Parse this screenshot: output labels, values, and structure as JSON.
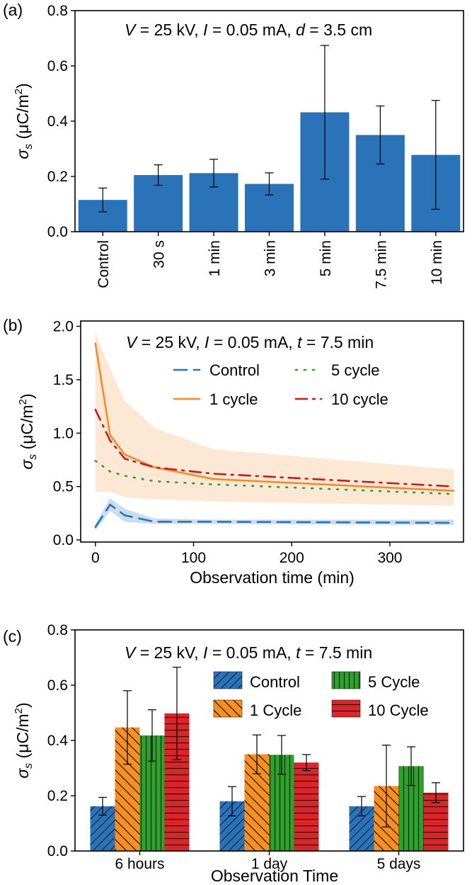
{
  "chart_data": [
    {
      "panel": "(a)",
      "type": "bar",
      "annotation": "V = 25 kV, I = 0.05 mA, d = 3.5 cm",
      "ylabel": "σs (μC/m2)",
      "xlabel": "",
      "ylim": [
        0,
        0.8
      ],
      "yticks": [
        "0.0",
        "0.2",
        "0.4",
        "0.6",
        "0.8"
      ],
      "categories": [
        "Control",
        "30 s",
        "1 min",
        "3 min",
        "5 min",
        "7.5 min",
        "10 min"
      ],
      "values": [
        0.115,
        0.205,
        0.212,
        0.173,
        0.432,
        0.35,
        0.278
      ],
      "errors": [
        0.043,
        0.037,
        0.05,
        0.04,
        0.242,
        0.105,
        0.197
      ],
      "color": "#2a73b8"
    },
    {
      "panel": "(b)",
      "type": "line",
      "annotation": "V = 25 kV, I = 0.05 mA, t = 7.5 min",
      "ylabel": "σs (μC/m2)",
      "xlabel": "Observation time (min)",
      "xlim": [
        -15,
        375
      ],
      "ylim": [
        -0.02,
        2.05
      ],
      "xticks": [
        0,
        100,
        200,
        300
      ],
      "yticks": [
        "0.0",
        "0.5",
        "1.0",
        "1.5",
        "2.0"
      ],
      "legend_placement": "top-right",
      "series": [
        {
          "name": "Control",
          "color": "#2a73b8",
          "dash": "18 10",
          "x": [
            0,
            15,
            30,
            60,
            120,
            365
          ],
          "y": [
            0.12,
            0.33,
            0.23,
            0.17,
            0.17,
            0.16
          ],
          "band_lo": [
            0.09,
            0.27,
            0.17,
            0.15,
            0.15,
            0.14
          ],
          "band_hi": [
            0.15,
            0.39,
            0.29,
            0.2,
            0.19,
            0.19
          ]
        },
        {
          "name": "1 cycle",
          "color": "#f08c2a",
          "dash": "",
          "x": [
            0,
            15,
            30,
            60,
            120,
            365
          ],
          "y": [
            1.84,
            0.98,
            0.8,
            0.68,
            0.57,
            0.46
          ],
          "band_lo": [
            0.45,
            0.45,
            0.4,
            0.38,
            0.36,
            0.32
          ],
          "band_hi": [
            1.94,
            1.6,
            1.3,
            1.05,
            0.85,
            0.66
          ]
        },
        {
          "name": "5 cycle",
          "color": "#2ea02c",
          "dash": "2 10",
          "x": [
            0,
            15,
            30,
            60,
            120,
            365
          ],
          "y": [
            0.74,
            0.64,
            0.6,
            0.55,
            0.52,
            0.43
          ]
        },
        {
          "name": "10 cycle",
          "color": "#c11e22",
          "dash": "16 8 3 8",
          "x": [
            0,
            15,
            30,
            60,
            120,
            365
          ],
          "y": [
            1.22,
            0.93,
            0.76,
            0.68,
            0.62,
            0.5
          ]
        }
      ]
    },
    {
      "panel": "(c)",
      "type": "bar",
      "annotation": "V = 25 kV, I = 0.05 mA, t = 7.5 min",
      "ylabel": "σs (μC/m2)",
      "xlabel": "Observation Time",
      "ylim": [
        0,
        0.8
      ],
      "yticks": [
        "0.0",
        "0.2",
        "0.4",
        "0.6",
        "0.8"
      ],
      "categories": [
        "6 hours",
        "1 day",
        "5 days"
      ],
      "legend_placement": "top-right",
      "series": [
        {
          "name": "Control",
          "color": "#2a73b8",
          "hatch": "forward",
          "values": [
            0.162,
            0.18,
            0.162
          ],
          "errors": [
            0.032,
            0.053,
            0.035
          ]
        },
        {
          "name": "1 Cycle",
          "color": "#f98f20",
          "hatch": "back",
          "values": [
            0.447,
            0.35,
            0.235
          ],
          "errors": [
            0.133,
            0.07,
            0.148
          ]
        },
        {
          "name": "5 Cycle",
          "color": "#2ea02c",
          "hatch": "vertical",
          "values": [
            0.418,
            0.348,
            0.307
          ],
          "errors": [
            0.093,
            0.07,
            0.07
          ]
        },
        {
          "name": "10 Cycle",
          "color": "#d8262b",
          "hatch": "horizontal",
          "values": [
            0.498,
            0.32,
            0.211
          ],
          "errors": [
            0.167,
            0.029,
            0.036
          ]
        }
      ]
    }
  ]
}
